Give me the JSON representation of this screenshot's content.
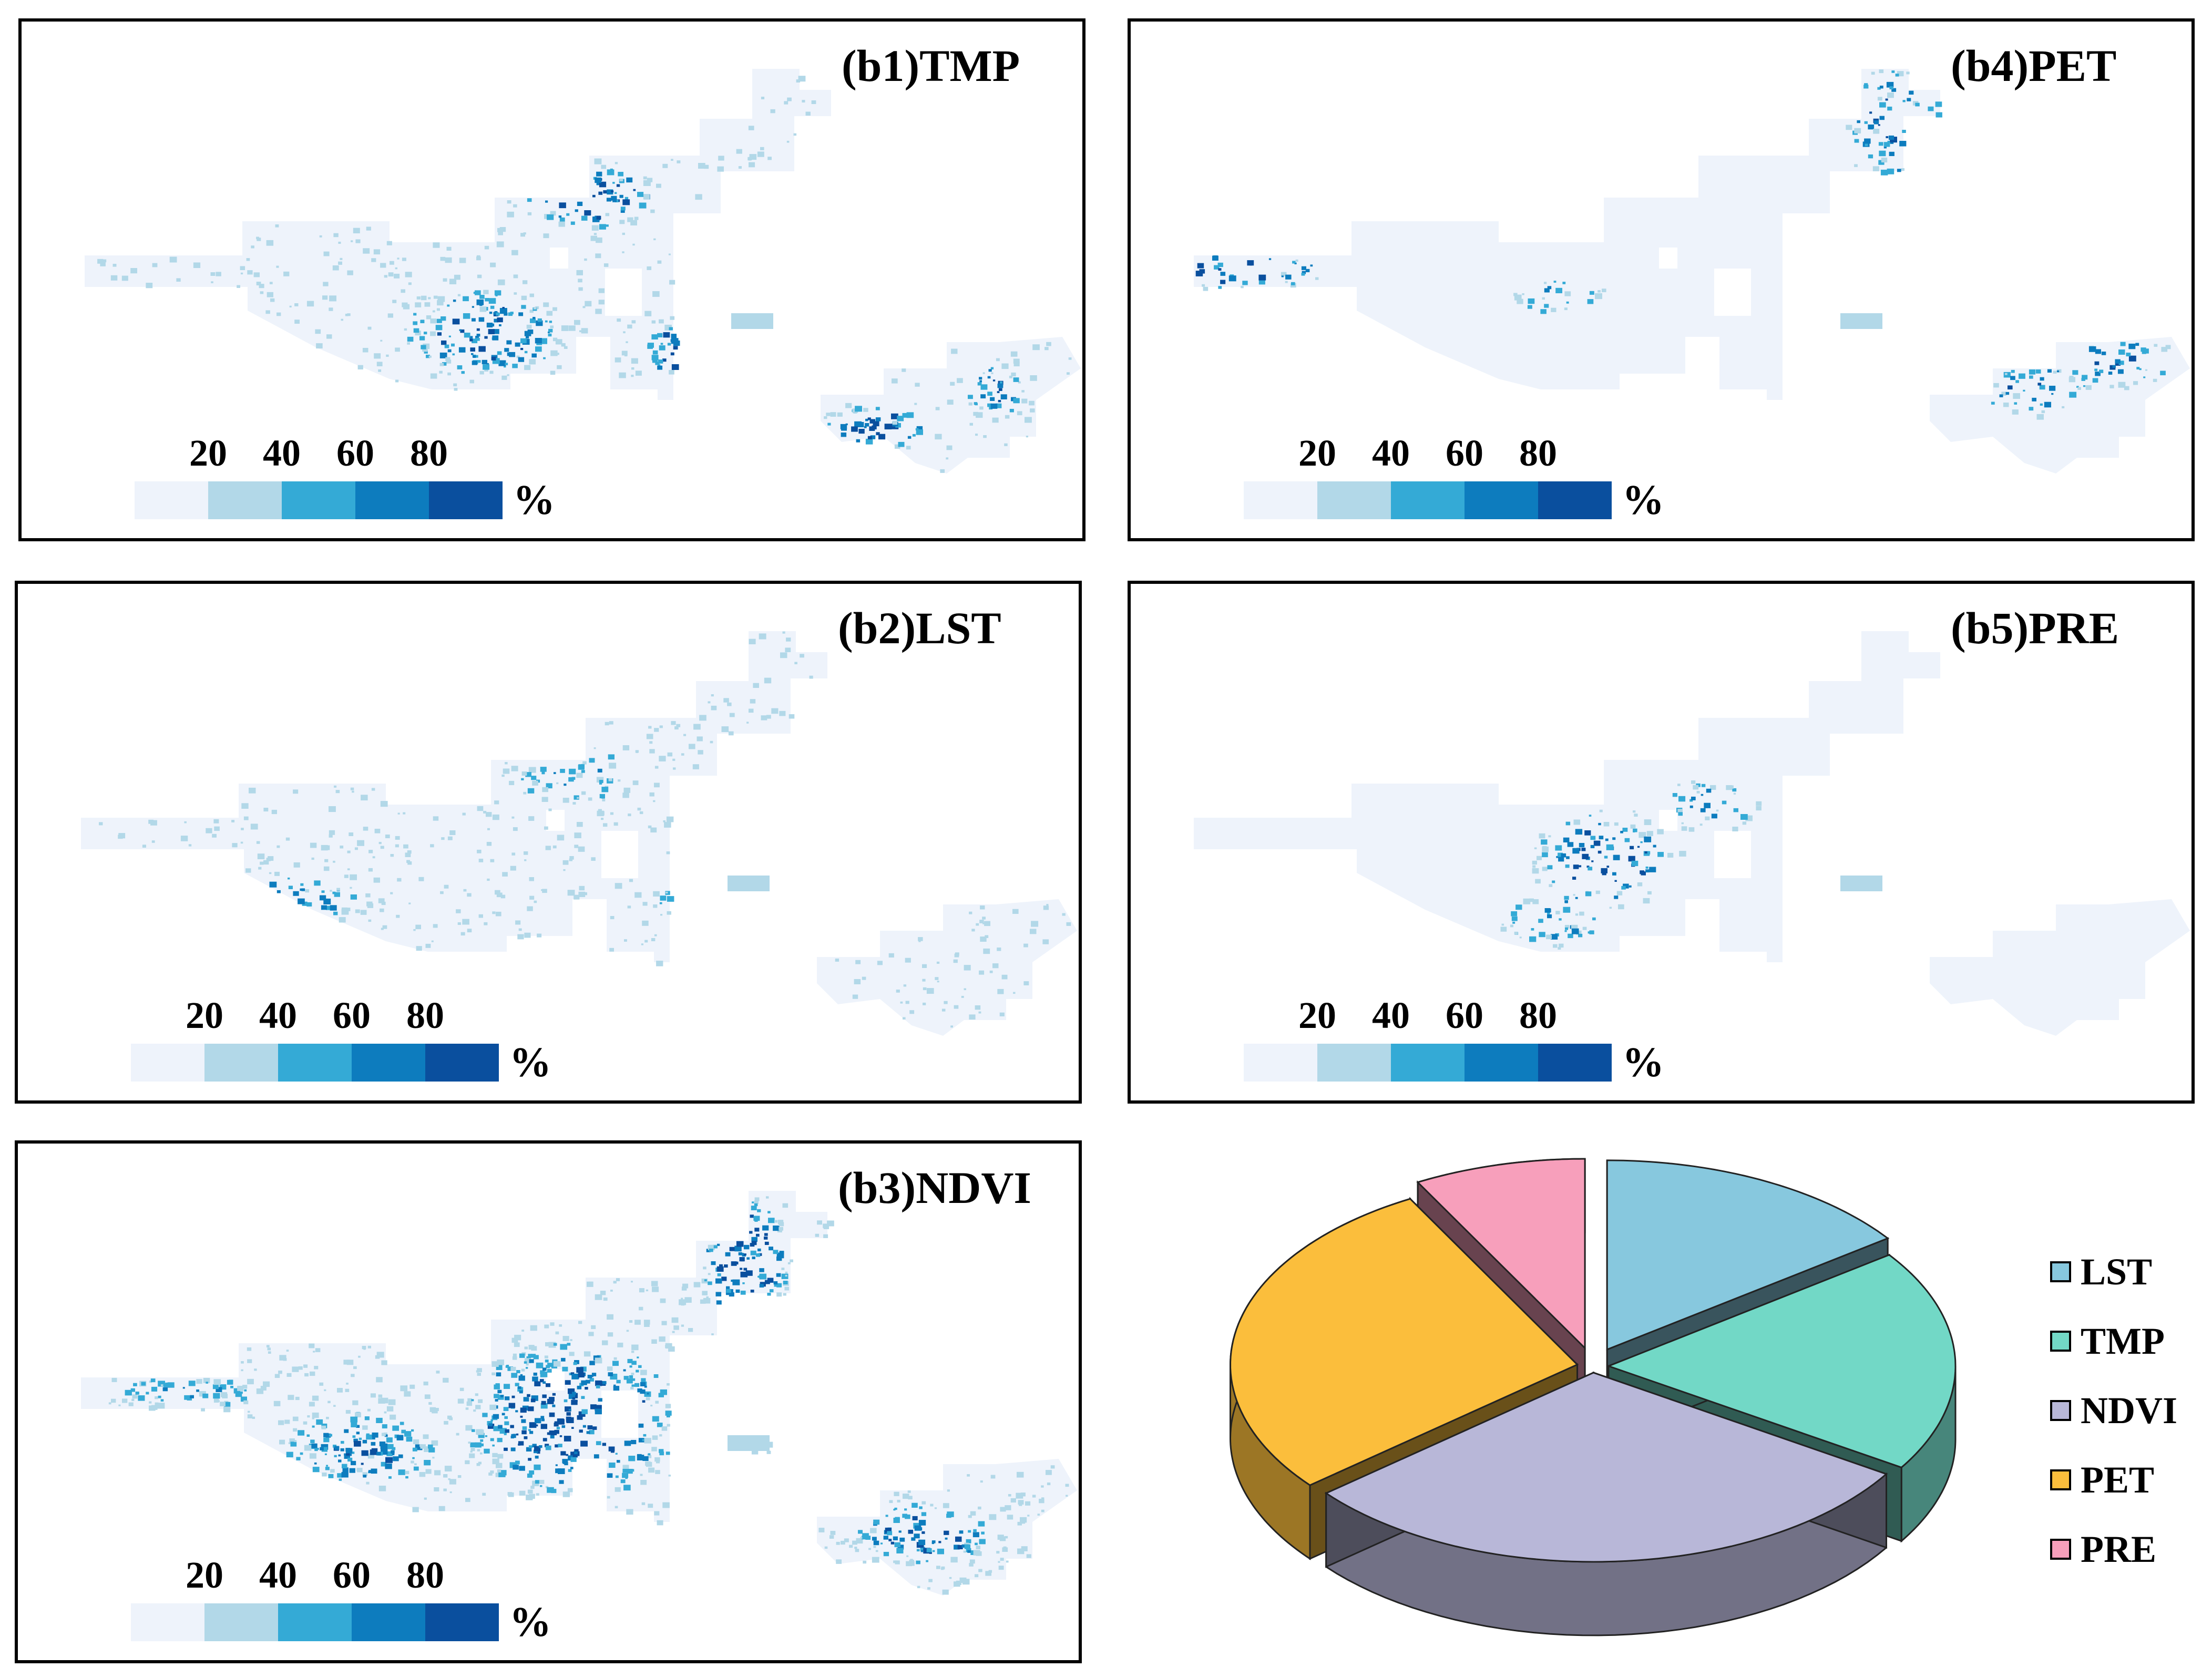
{
  "panels": [
    {
      "id": "b1",
      "title": "(b1)TMP"
    },
    {
      "id": "b4",
      "title": "(b4)PET"
    },
    {
      "id": "b2",
      "title": "(b2)LST"
    },
    {
      "id": "b5",
      "title": "(b5)PRE"
    },
    {
      "id": "b3",
      "title": "(b3)NDVI"
    }
  ],
  "legend": {
    "ticks": [
      "20",
      "40",
      "60",
      "80"
    ],
    "unit": "%",
    "colors": [
      "#eef3fb",
      "#b2d8e8",
      "#34aad6",
      "#0d7cbe",
      "#0a4f9e"
    ]
  },
  "chart_data": {
    "type": "pie",
    "title": "",
    "labels": [
      "LST",
      "TMP",
      "NDVI",
      "PET",
      "PRE"
    ],
    "values": [
      15,
      19,
      30,
      28,
      8
    ],
    "colors": [
      "#87c8de",
      "#72d8c6",
      "#b8b7d8",
      "#fbbe3c",
      "#f79fbb"
    ],
    "legend_position": "right"
  }
}
